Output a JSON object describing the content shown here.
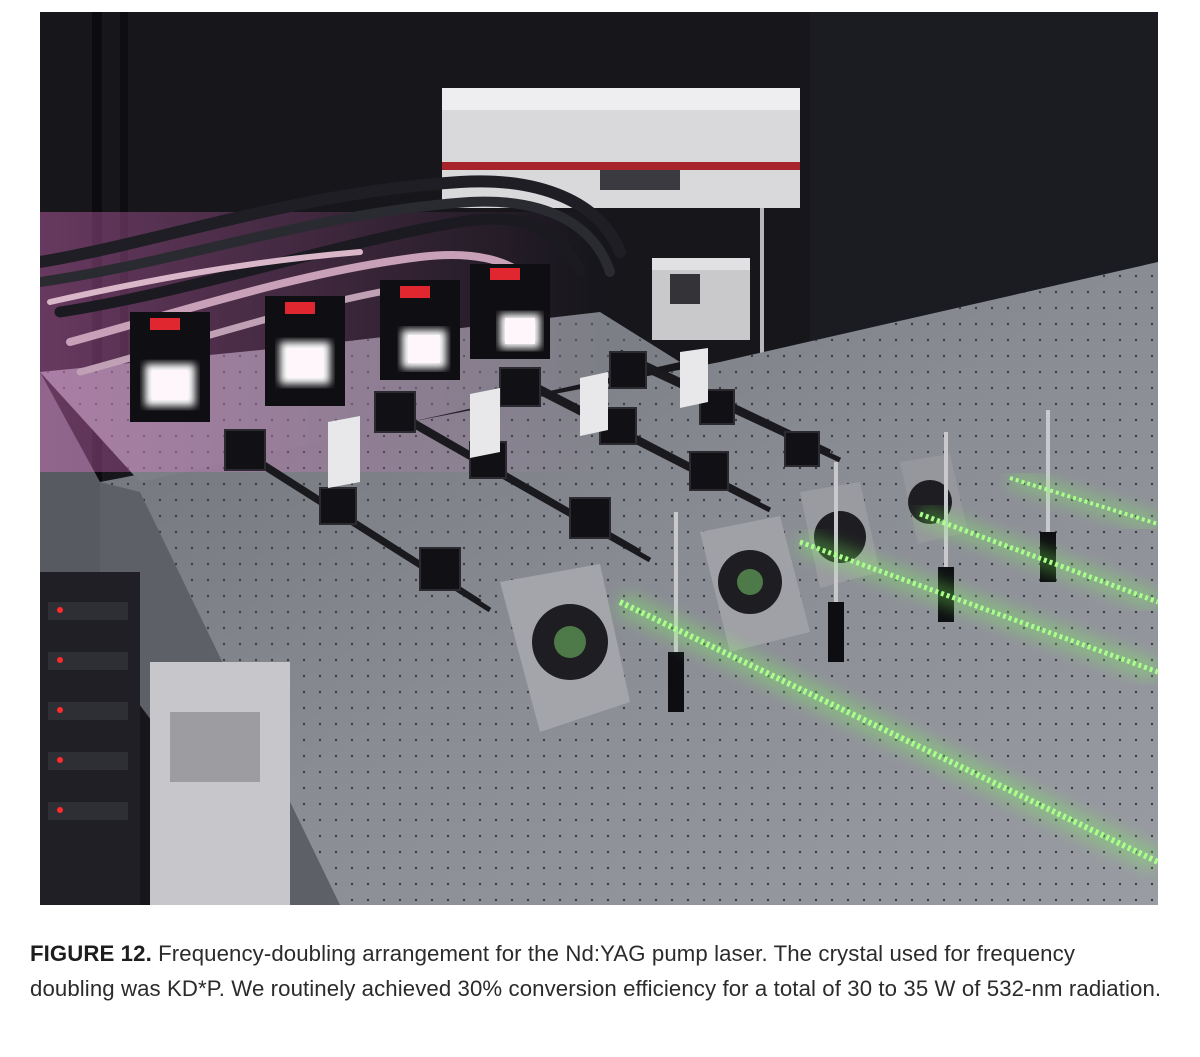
{
  "figure": {
    "label": "FIGURE 12.",
    "caption_text": "Frequency-doubling arrangement for the Nd:YAG pump laser. The crystal used for frequency doubling was KD*P. We routinely achieved 30% conversion efficiency for a total of 30 to 35 W of 532-nm radiation."
  },
  "photo": {
    "beam_color": "#7cff5a",
    "table_color": "#8c8e97",
    "background_color": "#16161b"
  }
}
